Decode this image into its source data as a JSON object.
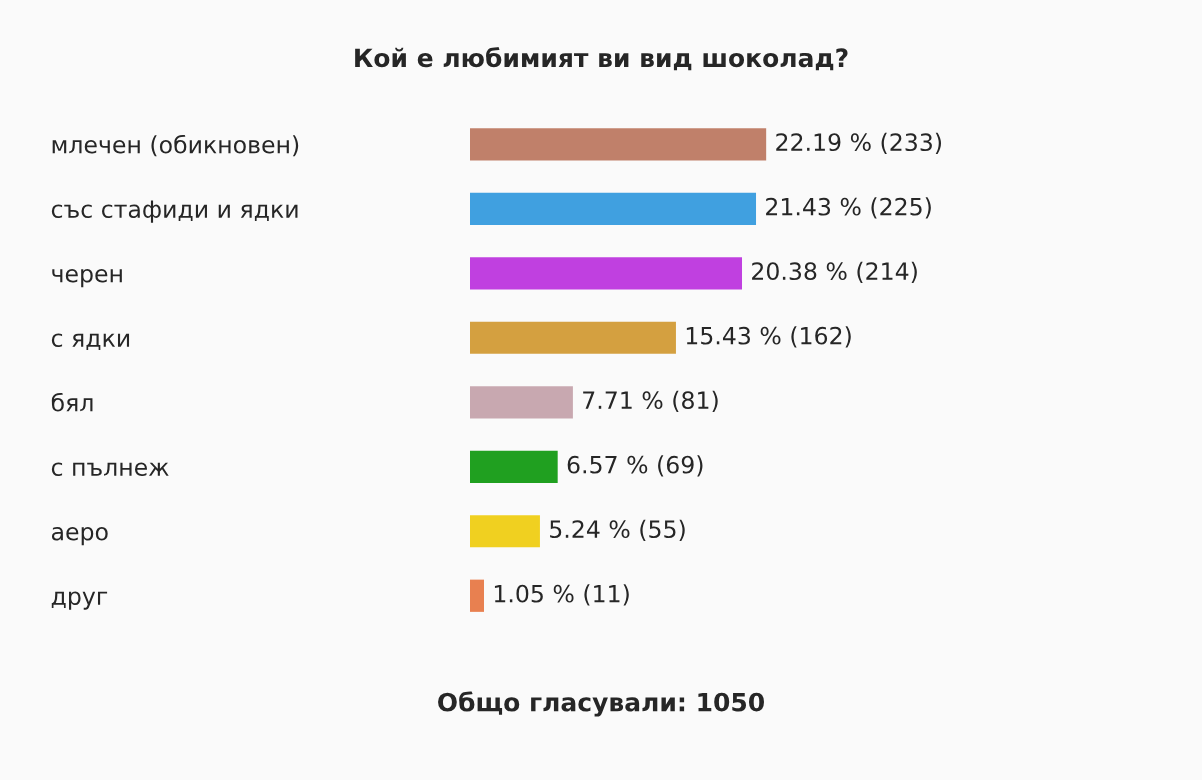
{
  "chart_data": {
    "type": "bar",
    "orientation": "horizontal",
    "title": "Кой е любимият ви вид шоколад?",
    "categories": [
      "млечен (обикновен)",
      "със стафиди и ядки",
      "черен",
      "с ядки",
      "бял",
      "с пълнеж",
      "аеро",
      "друг"
    ],
    "values": [
      22.19,
      21.43,
      20.38,
      15.43,
      7.71,
      6.57,
      5.24,
      1.05
    ],
    "value_labels": [
      "22.19 % (233)",
      "21.43 % (225)",
      "20.38 % (214)",
      "15.43 % (162)",
      "7.71 % (81)",
      "6.57 % (69)",
      "5.24 % (55)",
      "1.05 % (11)"
    ],
    "colors": [
      "#c0806a",
      "#40a0e0",
      "#c040e0",
      "#d4a040",
      "#c8a8b0",
      "#20a020",
      "#f0d020",
      "#e88050"
    ],
    "annotations": [
      "Общо гласували: 1050"
    ],
    "grid": false,
    "legend": false
  }
}
